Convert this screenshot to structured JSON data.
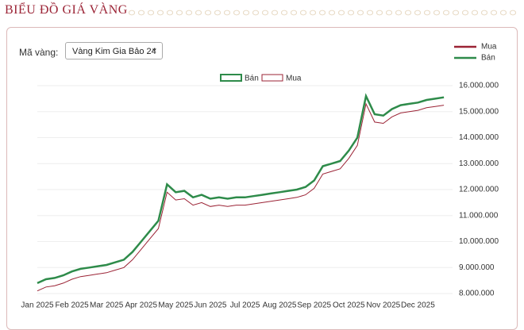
{
  "header": {
    "title": "BIỂU ĐỒ GIÁ VÀNG"
  },
  "filter": {
    "label": "Mã vàng:",
    "selected": "Vàng Kim Gia Bảo 24"
  },
  "chart_data": {
    "type": "line",
    "categories": [
      "Jan 2025",
      null,
      null,
      null,
      "Feb 2025",
      null,
      null,
      null,
      "Mar 2025",
      null,
      null,
      null,
      "Apr 2025",
      null,
      null,
      null,
      "May 2025",
      null,
      null,
      null,
      "Jun 2025",
      null,
      null,
      null,
      "Jul 2025",
      null,
      null,
      null,
      "Aug 2025",
      null,
      null,
      null,
      "Sep 2025",
      null,
      null,
      null,
      "Oct 2025",
      null,
      null,
      null,
      "Nov 2025",
      null,
      null,
      null,
      "Dec 2025",
      null,
      null,
      null
    ],
    "series": [
      {
        "name": "Bán",
        "color": "#2e8b4a",
        "values": [
          8400000,
          8550000,
          8600000,
          8700000,
          8850000,
          8950000,
          9000000,
          9050000,
          9100000,
          9200000,
          9300000,
          9600000,
          10000000,
          10400000,
          10800000,
          12200000,
          11900000,
          11950000,
          11700000,
          11800000,
          11650000,
          11700000,
          11650000,
          11700000,
          11700000,
          11750000,
          11800000,
          11850000,
          11900000,
          11950000,
          12000000,
          12100000,
          12350000,
          12900000,
          13000000,
          13100000,
          13500000,
          14000000,
          15600000,
          14900000,
          14850000,
          15100000,
          15250000,
          15300000,
          15350000,
          15450000,
          15500000,
          15550000
        ]
      },
      {
        "name": "Mua",
        "color": "#9b2335",
        "values": [
          8100000,
          8250000,
          8300000,
          8400000,
          8550000,
          8650000,
          8700000,
          8750000,
          8800000,
          8900000,
          9000000,
          9300000,
          9700000,
          10100000,
          10500000,
          11900000,
          11600000,
          11650000,
          11400000,
          11500000,
          11350000,
          11400000,
          11350000,
          11400000,
          11400000,
          11450000,
          11500000,
          11550000,
          11600000,
          11650000,
          11700000,
          11800000,
          12050000,
          12600000,
          12700000,
          12800000,
          13200000,
          13700000,
          15300000,
          14600000,
          14550000,
          14800000,
          14950000,
          15000000,
          15050000,
          15150000,
          15200000,
          15250000
        ]
      }
    ],
    "ylim": [
      8000000,
      16000000
    ],
    "yticks": [
      {
        "value": 8000000,
        "label": "8.000.000"
      },
      {
        "value": 9000000,
        "label": "9.000.000"
      },
      {
        "value": 10000000,
        "label": "10.000.000"
      },
      {
        "value": 11000000,
        "label": "11.000.000"
      },
      {
        "value": 12000000,
        "label": "12.000.000"
      },
      {
        "value": 13000000,
        "label": "13.000.000"
      },
      {
        "value": 14000000,
        "label": "14.000.000"
      },
      {
        "value": 15000000,
        "label": "15.000.000"
      },
      {
        "value": 16000000,
        "label": "16.000.000"
      }
    ],
    "grid": true
  }
}
